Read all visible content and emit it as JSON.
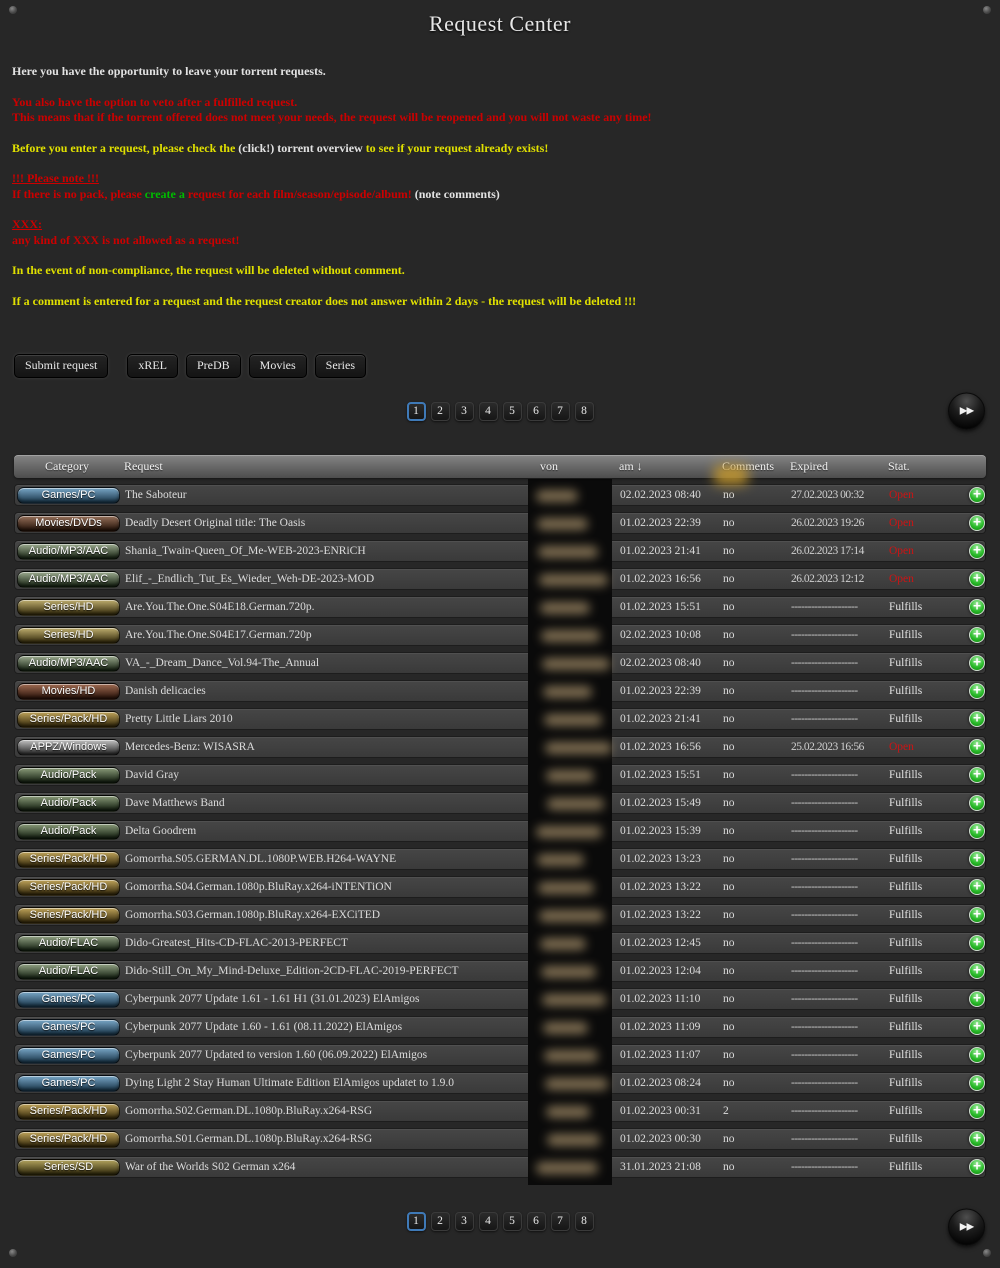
{
  "page": {
    "title": "Request Center"
  },
  "colors": {
    "white": "#e2e2e2",
    "red": "#cc0000",
    "yellow": "#e0e000",
    "green": "#00bb00"
  },
  "icons": {
    "plus": "+",
    "fast_forward": "▶▶",
    "sort_down": "↓"
  },
  "intro": {
    "paragraphs": [
      {
        "lines": [
          [
            {
              "t": "Here you have the opportunity to leave your torrent requests.",
              "c": "white"
            }
          ]
        ]
      },
      {
        "lines": [
          [
            {
              "t": "You also have the option to veto after a fulfilled request.",
              "c": "red"
            }
          ],
          [
            {
              "t": "This means that if the torrent offered does not meet your needs, the request will be reopened and you will not waste any time!",
              "c": "red"
            }
          ]
        ]
      },
      {
        "lines": [
          [
            {
              "t": "Before you enter a request, please check the ",
              "c": "yellow"
            },
            {
              "t": "(click!) torrent overview",
              "c": "white"
            },
            {
              "t": " to see if your request already exists!",
              "c": "yellow"
            }
          ]
        ]
      },
      {
        "lines": [
          [
            {
              "t": "!!! Please note !!!",
              "c": "red",
              "u": true
            }
          ],
          [
            {
              "t": "If there is no pack, please ",
              "c": "red"
            },
            {
              "t": "create a",
              "c": "green"
            },
            {
              "t": " request for each film/season/episode/album!",
              "c": "red"
            },
            {
              "t": " (note comments)",
              "c": "white"
            }
          ]
        ]
      },
      {
        "lines": [
          [
            {
              "t": "XXX:",
              "c": "red",
              "u": true
            }
          ],
          [
            {
              "t": "any kind of XXX is not allowed as a request!",
              "c": "red"
            }
          ]
        ]
      },
      {
        "lines": [
          [
            {
              "t": "In the event of non-compliance, the request will be deleted without comment.",
              "c": "yellow"
            }
          ]
        ]
      },
      {
        "lines": [
          [
            {
              "t": "If a comment is entered for a request and the request creator does not answer within 2 days - the request will be deleted !!!",
              "c": "yellow"
            }
          ]
        ]
      }
    ]
  },
  "toolbar": {
    "primary": "Submit request",
    "filters": [
      "xREL",
      "PreDB",
      "Movies",
      "Series"
    ]
  },
  "pagination": {
    "pages": [
      "1",
      "2",
      "3",
      "4",
      "5",
      "6",
      "7",
      "8"
    ],
    "active": "1"
  },
  "table": {
    "columns": [
      "Category",
      "Request",
      "von",
      "am ↓",
      "Comments",
      "Expired",
      "Stat."
    ],
    "status_colors": {
      "Open": "#cc1414",
      "Fulfills": "#e3e3e3"
    },
    "category_styles": {
      "Games/PC": [
        "#79a7c7",
        "#132e41"
      ],
      "Movies/DVDs": [
        "#96705a",
        "#1d0d04"
      ],
      "Audio/MP3/AAC": [
        "#9cab8f",
        "#0e1a0b"
      ],
      "Series/HD": [
        "#bfae6e",
        "#2b2306"
      ],
      "Movies/HD": [
        "#a06b52",
        "#230e06"
      ],
      "Series/Pack/HD": [
        "#c0a45a",
        "#2b2106"
      ],
      "APPZ/Windows": [
        "#c2c2c2",
        "#1f1f1f"
      ],
      "Audio/Pack": [
        "#8a9c79",
        "#0a1508"
      ],
      "Audio/FLAC": [
        "#93a384",
        "#0c180a"
      ],
      "Series/SD": [
        "#b3a45e",
        "#262006"
      ]
    },
    "rows": [
      {
        "category": "Games/PC",
        "request": "The Saboteur",
        "am": "02.02.2023 08:40",
        "comments": "no",
        "expired": "27.02.2023 00:32",
        "stat": "Open"
      },
      {
        "category": "Movies/DVDs",
        "request": "Deadly Desert Original title: The Oasis",
        "am": "01.02.2023 22:39",
        "comments": "no",
        "expired": "26.02.2023 19:26",
        "stat": "Open"
      },
      {
        "category": "Audio/MP3/AAC",
        "request": "Shania_Twain-Queen_Of_Me-WEB-2023-ENRiCH",
        "am": "01.02.2023 21:41",
        "comments": "no",
        "expired": "26.02.2023 17:14",
        "stat": "Open"
      },
      {
        "category": "Audio/MP3/AAC",
        "request": "Elif_-_Endlich_Tut_Es_Wieder_Weh-DE-2023-MOD",
        "am": "01.02.2023 16:56",
        "comments": "no",
        "expired": "26.02.2023 12:12",
        "stat": "Open"
      },
      {
        "category": "Series/HD",
        "request": "Are.You.The.One.S04E18.German.720p.",
        "am": "01.02.2023 15:51",
        "comments": "no",
        "expired": "--------------------",
        "stat": "Fulfills"
      },
      {
        "category": "Series/HD",
        "request": "Are.You.The.One.S04E17.German.720p",
        "am": "02.02.2023 10:08",
        "comments": "no",
        "expired": "--------------------",
        "stat": "Fulfills"
      },
      {
        "category": "Audio/MP3/AAC",
        "request": "VA_-_Dream_Dance_Vol.94-The_Annual",
        "am": "02.02.2023 08:40",
        "comments": "no",
        "expired": "--------------------",
        "stat": "Fulfills"
      },
      {
        "category": "Movies/HD",
        "request": "Danish delicacies",
        "am": "01.02.2023 22:39",
        "comments": "no",
        "expired": "--------------------",
        "stat": "Fulfills"
      },
      {
        "category": "Series/Pack/HD",
        "request": "Pretty Little Liars 2010",
        "am": "01.02.2023 21:41",
        "comments": "no",
        "expired": "--------------------",
        "stat": "Fulfills"
      },
      {
        "category": "APPZ/Windows",
        "request": "Mercedes-Benz: WISASRA",
        "am": "01.02.2023 16:56",
        "comments": "no",
        "expired": "25.02.2023 16:56",
        "stat": "Open"
      },
      {
        "category": "Audio/Pack",
        "request": "David Gray",
        "am": "01.02.2023 15:51",
        "comments": "no",
        "expired": "--------------------",
        "stat": "Fulfills"
      },
      {
        "category": "Audio/Pack",
        "request": "Dave Matthews Band",
        "am": "01.02.2023 15:49",
        "comments": "no",
        "expired": "--------------------",
        "stat": "Fulfills"
      },
      {
        "category": "Audio/Pack",
        "request": "Delta Goodrem",
        "am": "01.02.2023 15:39",
        "comments": "no",
        "expired": "--------------------",
        "stat": "Fulfills"
      },
      {
        "category": "Series/Pack/HD",
        "request": "Gomorrha.S05.GERMAN.DL.1080P.WEB.H264-WAYNE",
        "am": "01.02.2023 13:23",
        "comments": "no",
        "expired": "--------------------",
        "stat": "Fulfills"
      },
      {
        "category": "Series/Pack/HD",
        "request": "Gomorrha.S04.German.1080p.BluRay.x264-iNTENTiON",
        "am": "01.02.2023 13:22",
        "comments": "no",
        "expired": "--------------------",
        "stat": "Fulfills"
      },
      {
        "category": "Series/Pack/HD",
        "request": "Gomorrha.S03.German.1080p.BluRay.x264-EXCiTED",
        "am": "01.02.2023 13:22",
        "comments": "no",
        "expired": "--------------------",
        "stat": "Fulfills"
      },
      {
        "category": "Audio/FLAC",
        "request": "Dido-Greatest_Hits-CD-FLAC-2013-PERFECT",
        "am": "01.02.2023 12:45",
        "comments": "no",
        "expired": "--------------------",
        "stat": "Fulfills"
      },
      {
        "category": "Audio/FLAC",
        "request": "Dido-Still_On_My_Mind-Deluxe_Edition-2CD-FLAC-2019-PERFECT",
        "am": "01.02.2023 12:04",
        "comments": "no",
        "expired": "--------------------",
        "stat": "Fulfills"
      },
      {
        "category": "Games/PC",
        "request": "Cyberpunk 2077 Update 1.61 - 1.61 H1 (31.01.2023) ElAmigos",
        "am": "01.02.2023 11:10",
        "comments": "no",
        "expired": "--------------------",
        "stat": "Fulfills"
      },
      {
        "category": "Games/PC",
        "request": "Cyberpunk 2077 Update 1.60 - 1.61 (08.11.2022) ElAmigos",
        "am": "01.02.2023 11:09",
        "comments": "no",
        "expired": "--------------------",
        "stat": "Fulfills"
      },
      {
        "category": "Games/PC",
        "request": "Cyberpunk 2077 Updated to version 1.60 (06.09.2022) ElAmigos",
        "am": "01.02.2023 11:07",
        "comments": "no",
        "expired": "--------------------",
        "stat": "Fulfills"
      },
      {
        "category": "Games/PC",
        "request": "Dying Light 2 Stay Human Ultimate Edition ElAmigos updatet to 1.9.0",
        "am": "01.02.2023 08:24",
        "comments": "no",
        "expired": "--------------------",
        "stat": "Fulfills"
      },
      {
        "category": "Series/Pack/HD",
        "request": "Gomorrha.S02.German.DL.1080p.BluRay.x264-RSG",
        "am": "01.02.2023 00:31",
        "comments": "2",
        "expired": "--------------------",
        "stat": "Fulfills"
      },
      {
        "category": "Series/Pack/HD",
        "request": "Gomorrha.S01.German.DL.1080p.BluRay.x264-RSG",
        "am": "01.02.2023 00:30",
        "comments": "no",
        "expired": "--------------------",
        "stat": "Fulfills"
      },
      {
        "category": "Series/SD",
        "request": "War of the Worlds S02 German x264",
        "am": "31.01.2023 21:08",
        "comments": "no",
        "expired": "--------------------",
        "stat": "Fulfills"
      }
    ]
  }
}
